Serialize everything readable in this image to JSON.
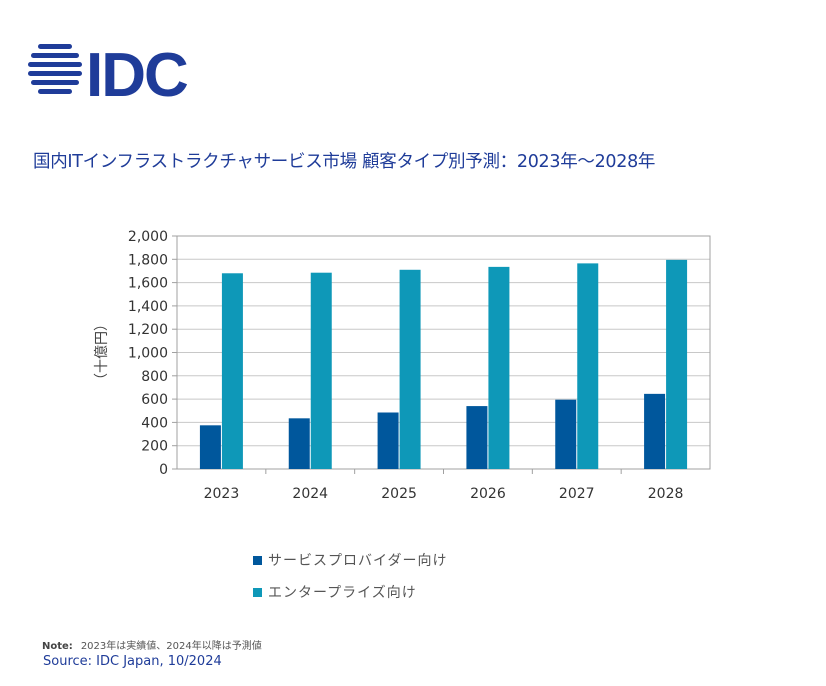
{
  "brand": {
    "name": "IDC",
    "color": "#1f3c99",
    "icon": "idc-globe-icon"
  },
  "header": {
    "title": "国内ITインフラストラクチャサービス市場 顧客タイプ別予測：2023年～2028年"
  },
  "chart_data": {
    "type": "bar",
    "categories": [
      "2023",
      "2024",
      "2025",
      "2026",
      "2027",
      "2028"
    ],
    "series": [
      {
        "name": "サービスプロバイダー向け",
        "color": "#00579c",
        "values": [
          375,
          435,
          485,
          540,
          595,
          645
        ]
      },
      {
        "name": "エンタープライズ向け",
        "color": "#0e98b8",
        "values": [
          1680,
          1685,
          1710,
          1735,
          1765,
          1795
        ]
      }
    ],
    "ylabel": "（十億円）",
    "ylim": [
      0,
      2000
    ],
    "yticks": [
      0,
      200,
      400,
      600,
      800,
      1000,
      1200,
      1400,
      1600,
      1800,
      2000
    ],
    "ytick_labels": [
      "0",
      "200",
      "400",
      "600",
      "800",
      "1,000",
      "1,200",
      "1,400",
      "1,600",
      "1,800",
      "2,000"
    ],
    "grid": true,
    "legend_position": "bottom"
  },
  "footer": {
    "note_label": "Note:",
    "note_text": "2023年は実績値、2024年以降は予測値",
    "source": "Source: IDC Japan, 10/2024"
  }
}
